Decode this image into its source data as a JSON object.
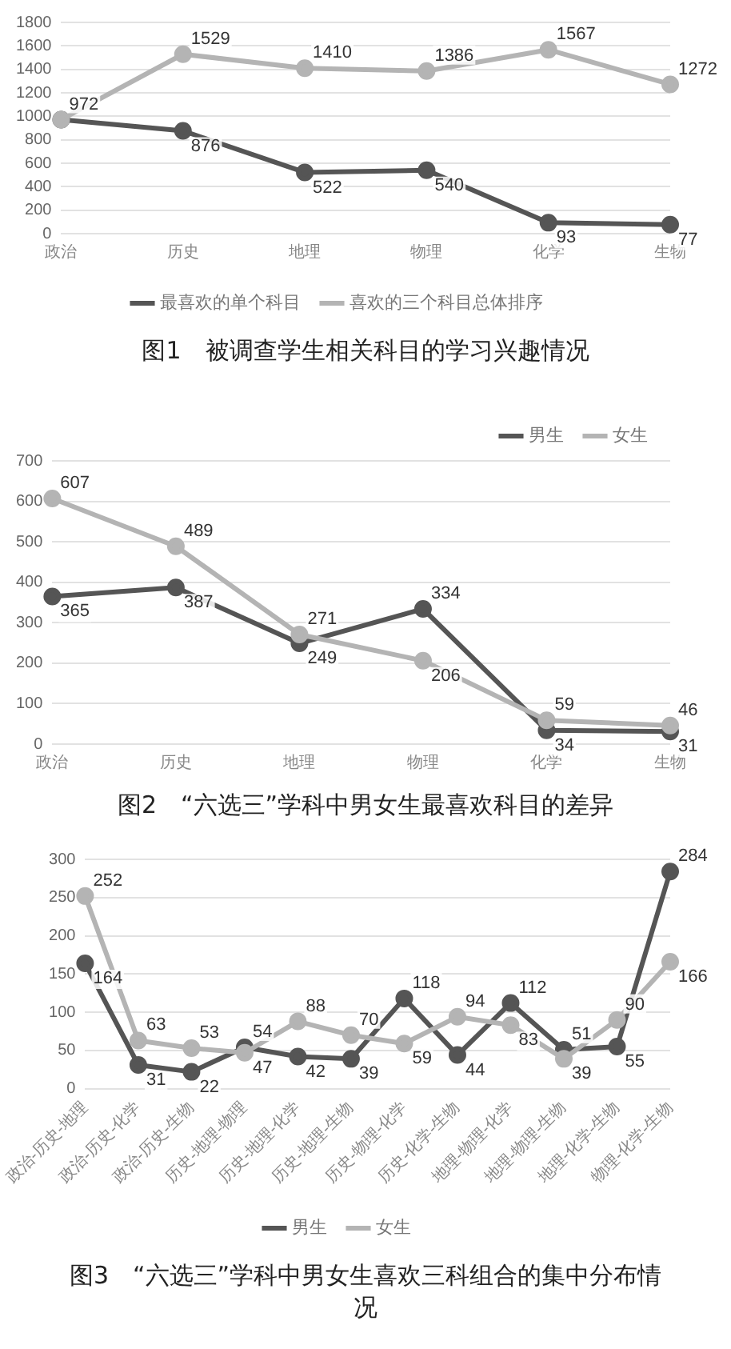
{
  "chart_data": [
    {
      "type": "line",
      "title": "图1　被调查学生相关科目的学习兴趣情况",
      "categories": [
        "政治",
        "历史",
        "地理",
        "物理",
        "化学",
        "生物"
      ],
      "series": [
        {
          "name": "最喜欢的单个科目",
          "color": "#555555",
          "values": [
            972,
            876,
            522,
            540,
            93,
            77
          ],
          "value_labels": [
            "972",
            "876",
            "522",
            "540",
            "93",
            "77"
          ]
        },
        {
          "name": "喜欢的三个科目总体排序",
          "color": "#b4b4b4",
          "values": [
            972,
            1529,
            1410,
            1386,
            1567,
            1272
          ],
          "value_labels": [
            null,
            "1529",
            "1410",
            "1386",
            "1567",
            "1272"
          ]
        }
      ],
      "ylim": [
        0,
        1800
      ],
      "yticks": [
        0,
        200,
        400,
        600,
        800,
        1000,
        1200,
        1400,
        1600,
        1800
      ],
      "grid": "y",
      "legend": "bottom",
      "marker": "circle"
    },
    {
      "type": "line",
      "title": "图2　“六选三”学科中男女生最喜欢科目的差异",
      "categories": [
        "政治",
        "历史",
        "地理",
        "物理",
        "化学",
        "生物"
      ],
      "series": [
        {
          "name": "男生",
          "color": "#555555",
          "values": [
            365,
            387,
            249,
            334,
            34,
            31
          ]
        },
        {
          "name": "女生",
          "color": "#b4b4b4",
          "values": [
            607,
            489,
            271,
            206,
            59,
            46
          ]
        }
      ],
      "ylim": [
        0,
        700
      ],
      "yticks": [
        0,
        100,
        200,
        300,
        400,
        500,
        600,
        700
      ],
      "grid": "y",
      "legend": "top right",
      "marker": "circle",
      "data_labels": true
    },
    {
      "type": "line",
      "title": "图3　“六选三”学科中男女生喜欢三科组合的集中分布情况",
      "categories": [
        "政治-历史-地理",
        "政治-历史-化学",
        "政治-历史-生物",
        "历史-地理-物理",
        "历史-地理-化学",
        "历史-地理-生物",
        "历史-物理-化学",
        "历史-化学-生物",
        "地理-物理-化学",
        "地理-物理-生物",
        "地理-化学-生物",
        "物理-化学-生物"
      ],
      "series": [
        {
          "name": "男生",
          "color": "#555555",
          "values": [
            164,
            31,
            22,
            54,
            42,
            39,
            118,
            44,
            112,
            51,
            55,
            284
          ]
        },
        {
          "name": "女生",
          "color": "#b4b4b4",
          "values": [
            252,
            63,
            53,
            47,
            88,
            70,
            59,
            94,
            83,
            39,
            90,
            166
          ]
        }
      ],
      "ylim": [
        0,
        300
      ],
      "yticks": [
        0,
        50,
        100,
        150,
        200,
        250,
        300
      ],
      "grid": "y",
      "legend": "bottom",
      "marker": "circle",
      "data_labels": true
    }
  ]
}
